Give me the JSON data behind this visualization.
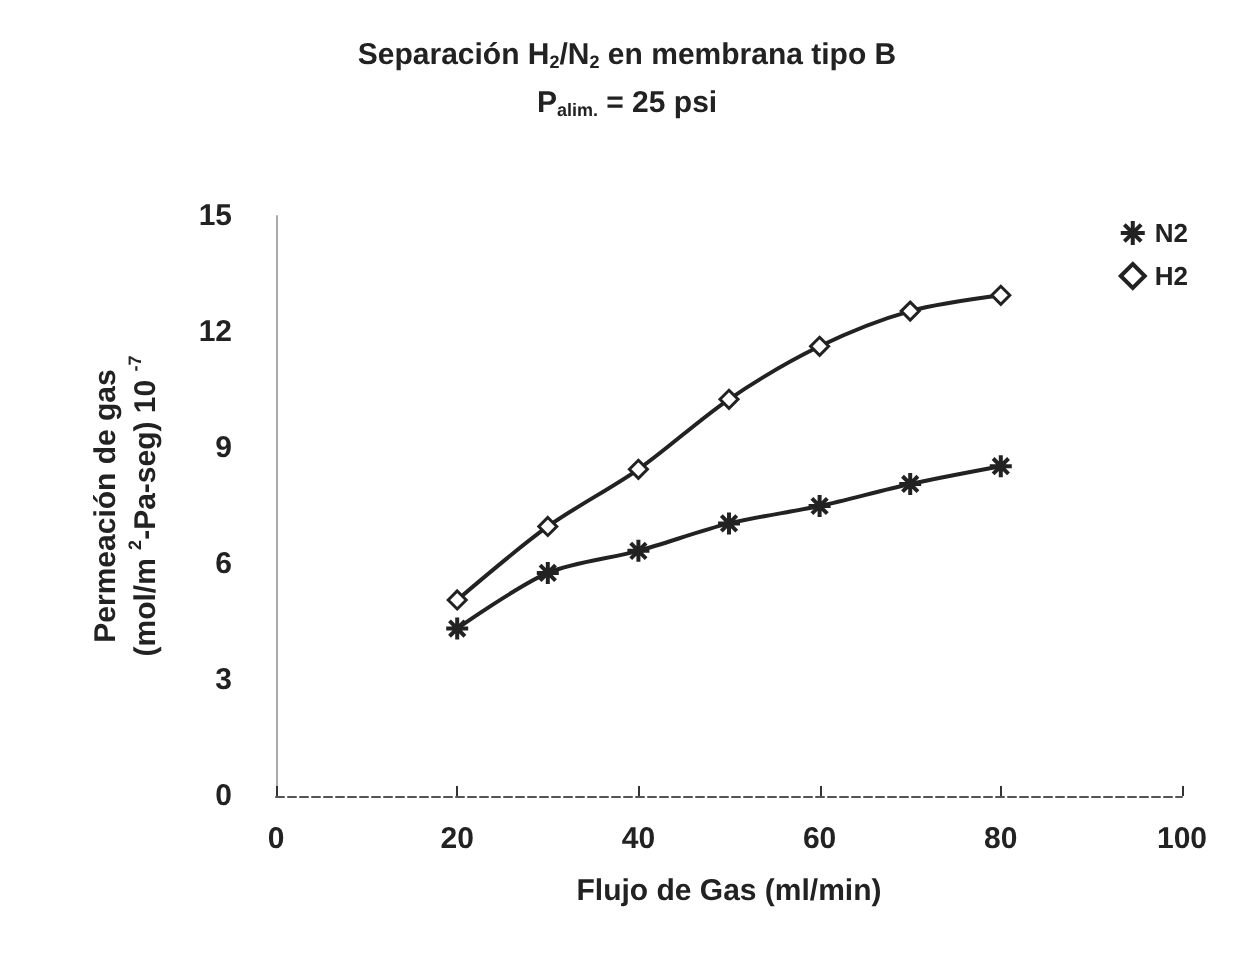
{
  "chart_data": {
    "type": "line",
    "title": "Separación H$_{2}$/N$_{2}$ en membrana tipo B",
    "subtitle": "P$_{alim.}$ = 25 psi",
    "xlabel": "Flujo de Gas (ml/min)",
    "ylabel": "Permeación de gas\n(mol/m $^{2}$-Pa-seg) 10 $^{-7}$",
    "x": [
      20,
      30,
      40,
      50,
      60,
      70,
      80
    ],
    "series": [
      {
        "name": "N2",
        "color": "#222222",
        "marker": "cross",
        "values": [
          4.33,
          5.77,
          6.34,
          7.05,
          7.5,
          8.07,
          8.53
        ]
      },
      {
        "name": "H2",
        "color": "#222222",
        "marker": "diamond",
        "values": [
          5.07,
          6.97,
          8.45,
          10.26,
          11.63,
          12.54,
          12.95
        ]
      }
    ],
    "xlim": [
      0,
      100
    ],
    "xticks": [
      0,
      20,
      40,
      60,
      80,
      100
    ],
    "ylim": [
      0,
      15
    ],
    "yticks": [
      0,
      3,
      6,
      9,
      12,
      15
    ],
    "grid": false,
    "legend": "top right",
    "line_style": "solid"
  }
}
